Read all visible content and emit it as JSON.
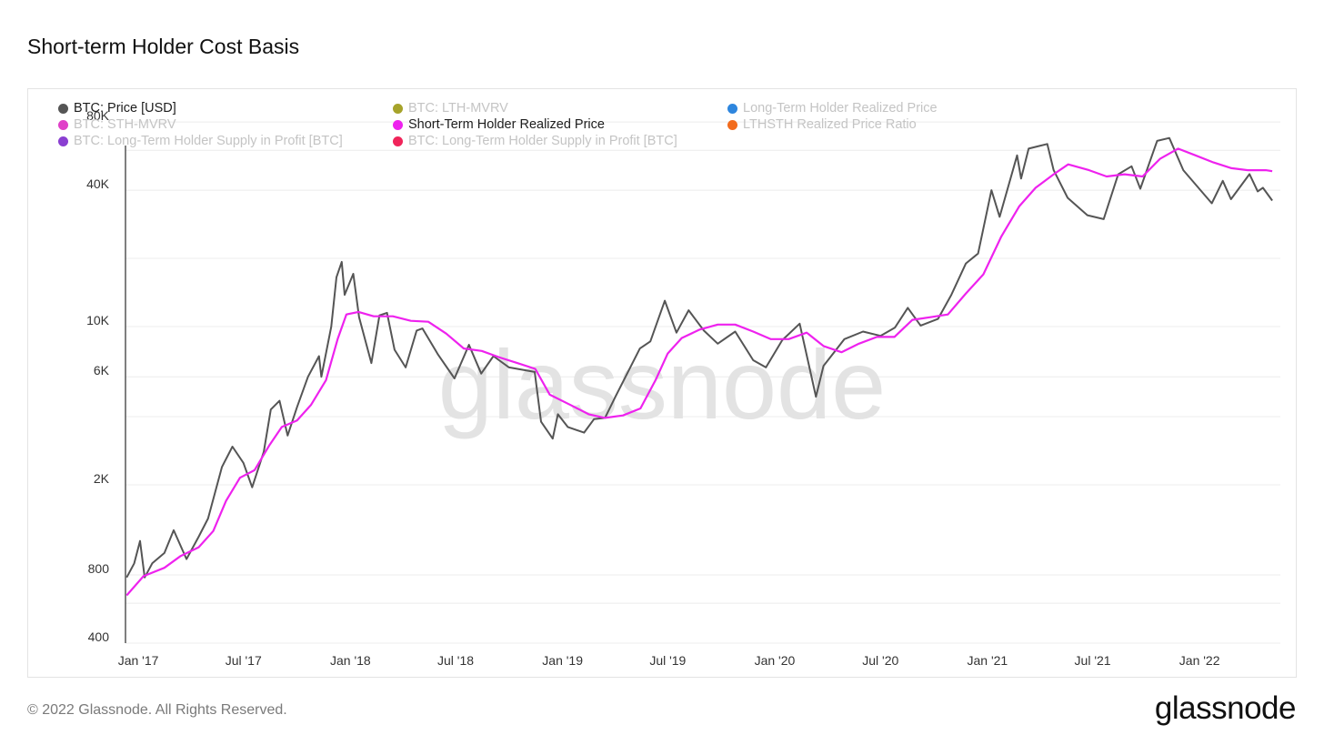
{
  "header": {
    "title": "Short-term Holder Cost Basis"
  },
  "footer": {
    "copyright": "© 2022 Glassnode. All Rights Reserved.",
    "brand": "glassnode"
  },
  "watermark": "glassnode",
  "legend": [
    {
      "label": "BTC: Price [USD]",
      "color": "#555555",
      "active": true
    },
    {
      "label": "BTC: LTH-MVRV",
      "color": "#a6a32a",
      "active": false
    },
    {
      "label": "Long-Term Holder Realized Price",
      "color": "#2e86de",
      "active": false
    },
    {
      "label": "BTC: STH-MVRV",
      "color": "#e040c8",
      "active": false
    },
    {
      "label": "Short-Term Holder Realized Price",
      "color": "#ee22ee",
      "active": true
    },
    {
      "label": "LTHSTH Realized Price Ratio",
      "color": "#f26b1d",
      "active": false
    },
    {
      "label": "BTC: Long-Term Holder Supply in Profit [BTC]",
      "color": "#8a3fd1",
      "active": false
    },
    {
      "label": "BTC: Long-Term Holder Supply in Profit [BTC]",
      "color": "#f0245a",
      "active": false
    }
  ],
  "chart_data": {
    "type": "line",
    "yscale": "log",
    "ylim": [
      400,
      100000
    ],
    "xlim": [
      "2016-12-10",
      "2022-05-20"
    ],
    "y_ticks": [
      400,
      800,
      2000,
      6000,
      10000,
      40000,
      80000
    ],
    "y_tick_labels": [
      "400",
      "800",
      "2K",
      "6K",
      "10K",
      "40K",
      "80K"
    ],
    "x_ticks": [
      "2017-01-01",
      "2017-07-01",
      "2018-01-01",
      "2018-07-01",
      "2019-01-01",
      "2019-07-01",
      "2020-01-01",
      "2020-07-01",
      "2021-01-01",
      "2021-07-01",
      "2022-01-01"
    ],
    "x_tick_labels": [
      "Jan '17",
      "Jul '17",
      "Jan '18",
      "Jul '18",
      "Jan '19",
      "Jul '19",
      "Jan '20",
      "Jul '20",
      "Jan '21",
      "Jul '21",
      "Jan '22"
    ],
    "grid": true,
    "series": [
      {
        "name": "BTC: Price [USD]",
        "color": "#555555",
        "points": [
          [
            "2016-12-12",
            780
          ],
          [
            "2016-12-25",
            900
          ],
          [
            "2017-01-04",
            1130
          ],
          [
            "2017-01-12",
            780
          ],
          [
            "2017-01-25",
            900
          ],
          [
            "2017-02-15",
            1000
          ],
          [
            "2017-03-03",
            1260
          ],
          [
            "2017-03-25",
            940
          ],
          [
            "2017-04-15",
            1180
          ],
          [
            "2017-05-01",
            1420
          ],
          [
            "2017-05-25",
            2400
          ],
          [
            "2017-06-12",
            2950
          ],
          [
            "2017-07-01",
            2500
          ],
          [
            "2017-07-16",
            1950
          ],
          [
            "2017-08-05",
            2800
          ],
          [
            "2017-08-17",
            4300
          ],
          [
            "2017-09-01",
            4700
          ],
          [
            "2017-09-15",
            3300
          ],
          [
            "2017-10-01",
            4400
          ],
          [
            "2017-10-20",
            6000
          ],
          [
            "2017-11-08",
            7400
          ],
          [
            "2017-11-12",
            6000
          ],
          [
            "2017-11-29",
            10000
          ],
          [
            "2017-12-08",
            16500
          ],
          [
            "2017-12-17",
            19300
          ],
          [
            "2017-12-22",
            13800
          ],
          [
            "2018-01-06",
            17100
          ],
          [
            "2018-01-16",
            11000
          ],
          [
            "2018-02-06",
            6900
          ],
          [
            "2018-02-20",
            11200
          ],
          [
            "2018-03-05",
            11500
          ],
          [
            "2018-03-18",
            7900
          ],
          [
            "2018-04-06",
            6600
          ],
          [
            "2018-04-25",
            9600
          ],
          [
            "2018-05-05",
            9800
          ],
          [
            "2018-06-01",
            7500
          ],
          [
            "2018-06-29",
            5900
          ],
          [
            "2018-07-24",
            8300
          ],
          [
            "2018-08-14",
            6200
          ],
          [
            "2018-09-04",
            7400
          ],
          [
            "2018-10-01",
            6600
          ],
          [
            "2018-11-14",
            6300
          ],
          [
            "2018-11-25",
            3800
          ],
          [
            "2018-12-15",
            3200
          ],
          [
            "2018-12-24",
            4100
          ],
          [
            "2019-01-10",
            3600
          ],
          [
            "2019-02-07",
            3400
          ],
          [
            "2019-02-24",
            3900
          ],
          [
            "2019-03-15",
            3950
          ],
          [
            "2019-04-02",
            4900
          ],
          [
            "2019-05-14",
            8000
          ],
          [
            "2019-06-01",
            8600
          ],
          [
            "2019-06-26",
            13000
          ],
          [
            "2019-07-16",
            9400
          ],
          [
            "2019-08-06",
            11800
          ],
          [
            "2019-09-01",
            9600
          ],
          [
            "2019-09-25",
            8400
          ],
          [
            "2019-10-25",
            9500
          ],
          [
            "2019-11-25",
            7100
          ],
          [
            "2019-12-17",
            6600
          ],
          [
            "2020-01-14",
            8700
          ],
          [
            "2020-02-13",
            10300
          ],
          [
            "2020-03-12",
            4900
          ],
          [
            "2020-03-25",
            6700
          ],
          [
            "2020-04-30",
            8800
          ],
          [
            "2020-06-01",
            9500
          ],
          [
            "2020-07-01",
            9100
          ],
          [
            "2020-07-26",
            9900
          ],
          [
            "2020-08-17",
            12100
          ],
          [
            "2020-09-08",
            10100
          ],
          [
            "2020-10-08",
            10800
          ],
          [
            "2020-10-31",
            13800
          ],
          [
            "2020-11-25",
            19000
          ],
          [
            "2020-12-16",
            21000
          ],
          [
            "2021-01-08",
            40000
          ],
          [
            "2021-01-22",
            30500
          ],
          [
            "2021-02-21",
            57000
          ],
          [
            "2021-02-28",
            45000
          ],
          [
            "2021-03-13",
            61000
          ],
          [
            "2021-04-14",
            64000
          ],
          [
            "2021-04-25",
            49000
          ],
          [
            "2021-05-19",
            37000
          ],
          [
            "2021-06-22",
            31000
          ],
          [
            "2021-07-20",
            29800
          ],
          [
            "2021-08-14",
            47000
          ],
          [
            "2021-09-06",
            51000
          ],
          [
            "2021-09-21",
            40600
          ],
          [
            "2021-10-20",
            66000
          ],
          [
            "2021-11-10",
            68000
          ],
          [
            "2021-12-04",
            49000
          ],
          [
            "2022-01-22",
            35000
          ],
          [
            "2022-02-10",
            44000
          ],
          [
            "2022-02-24",
            36500
          ],
          [
            "2022-03-28",
            47100
          ],
          [
            "2022-04-11",
            39500
          ],
          [
            "2022-04-20",
            41000
          ],
          [
            "2022-05-06",
            36000
          ]
        ]
      },
      {
        "name": "Short-Term Holder Realized Price",
        "color": "#ee22ee",
        "points": [
          [
            "2016-12-12",
            650
          ],
          [
            "2017-01-10",
            790
          ],
          [
            "2017-02-15",
            860
          ],
          [
            "2017-03-15",
            970
          ],
          [
            "2017-04-15",
            1060
          ],
          [
            "2017-05-10",
            1250
          ],
          [
            "2017-06-01",
            1700
          ],
          [
            "2017-06-25",
            2150
          ],
          [
            "2017-07-20",
            2320
          ],
          [
            "2017-08-15",
            3000
          ],
          [
            "2017-09-05",
            3600
          ],
          [
            "2017-10-01",
            3850
          ],
          [
            "2017-10-25",
            4500
          ],
          [
            "2017-11-20",
            5800
          ],
          [
            "2017-12-10",
            8800
          ],
          [
            "2017-12-25",
            11300
          ],
          [
            "2018-01-15",
            11600
          ],
          [
            "2018-02-10",
            11100
          ],
          [
            "2018-03-15",
            11100
          ],
          [
            "2018-04-15",
            10600
          ],
          [
            "2018-05-15",
            10500
          ],
          [
            "2018-06-15",
            9300
          ],
          [
            "2018-07-15",
            8000
          ],
          [
            "2018-08-15",
            7800
          ],
          [
            "2018-09-15",
            7300
          ],
          [
            "2018-10-15",
            6900
          ],
          [
            "2018-11-15",
            6500
          ],
          [
            "2018-12-10",
            5000
          ],
          [
            "2019-01-15",
            4500
          ],
          [
            "2019-02-15",
            4100
          ],
          [
            "2019-03-15",
            3950
          ],
          [
            "2019-04-15",
            4050
          ],
          [
            "2019-05-15",
            4350
          ],
          [
            "2019-06-10",
            5800
          ],
          [
            "2019-07-01",
            7600
          ],
          [
            "2019-07-25",
            8900
          ],
          [
            "2019-08-25",
            9700
          ],
          [
            "2019-09-25",
            10200
          ],
          [
            "2019-10-25",
            10200
          ],
          [
            "2019-11-25",
            9500
          ],
          [
            "2019-12-25",
            8800
          ],
          [
            "2020-01-25",
            8800
          ],
          [
            "2020-02-25",
            9400
          ],
          [
            "2020-03-25",
            8200
          ],
          [
            "2020-04-25",
            7700
          ],
          [
            "2020-05-25",
            8400
          ],
          [
            "2020-06-25",
            9000
          ],
          [
            "2020-07-25",
            9000
          ],
          [
            "2020-08-25",
            10700
          ],
          [
            "2020-09-25",
            11000
          ],
          [
            "2020-10-25",
            11300
          ],
          [
            "2020-11-25",
            14000
          ],
          [
            "2020-12-25",
            17000
          ],
          [
            "2021-01-25",
            25000
          ],
          [
            "2021-02-25",
            34000
          ],
          [
            "2021-03-25",
            41000
          ],
          [
            "2021-04-25",
            47000
          ],
          [
            "2021-05-20",
            52000
          ],
          [
            "2021-06-25",
            49000
          ],
          [
            "2021-07-25",
            46000
          ],
          [
            "2021-08-25",
            47000
          ],
          [
            "2021-09-25",
            46000
          ],
          [
            "2021-10-25",
            55000
          ],
          [
            "2021-11-25",
            61000
          ],
          [
            "2021-12-25",
            57000
          ],
          [
            "2022-01-25",
            53000
          ],
          [
            "2022-02-25",
            50000
          ],
          [
            "2022-03-25",
            49000
          ],
          [
            "2022-04-25",
            49000
          ],
          [
            "2022-05-06",
            48500
          ]
        ]
      }
    ]
  }
}
